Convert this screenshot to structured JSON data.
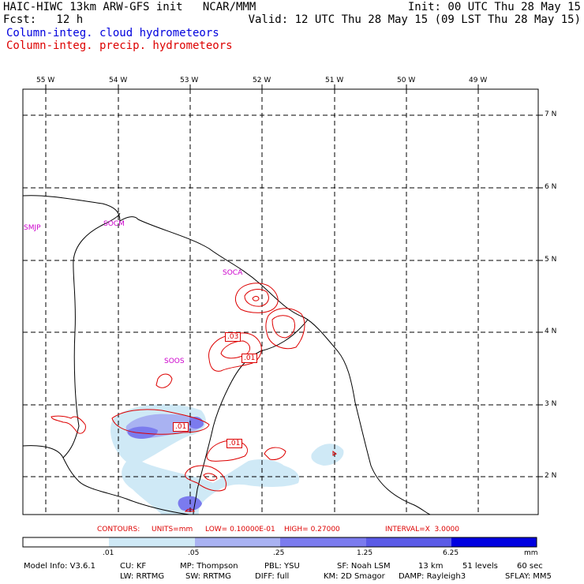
{
  "header": {
    "left_line1": "HAIC-HIWC 13km ARW-GFS init   NCAR/MMM",
    "left_line2": "Fcst:   12 h",
    "right_line1": "Init: 00 UTC Thu 28 May 15",
    "right_line2": "Valid: 12 UTC Thu 28 May 15 (09 LST Thu 28 May 15)",
    "field_cloud": "Column-integ. cloud hydrometeors",
    "field_precip": "Column-integ. precip. hydrometeors"
  },
  "map": {
    "lon_labels": [
      "55 W",
      "54 W",
      "53 W",
      "52 W",
      "51 W",
      "50 W",
      "49 W"
    ],
    "lat_labels": [
      "7 N",
      "6 N",
      "5 N",
      "4 N",
      "3 N",
      "2 N"
    ],
    "stations": [
      "SMJP",
      "SOCM",
      "SOCA",
      "SOOS"
    ],
    "contour_labels": [
      ".03",
      ".01",
      ".01",
      ".01"
    ]
  },
  "colors": {
    "cloud_text": "#0000dd",
    "precip_contour": "#dd0000",
    "station": "#cc00cc",
    "shade_1": "#cfe9f6",
    "shade_2": "#a9b2f2",
    "shade_3": "#7b7bee",
    "shade_4": "#5a5ae6",
    "shade_5": "#3a3ad8",
    "shade_6": "#0000e0"
  },
  "contour_info": {
    "contours": "CONTOURS:",
    "units": "UNITS=mm",
    "low": "LOW= 0.10000E-01",
    "high": "HIGH= 0.27000",
    "interval": "INTERVAL=X  3.0000"
  },
  "colorbar": {
    "ticks": [
      ".01",
      ".05",
      ".25",
      "1.25",
      "6.25"
    ],
    "unit": "mm"
  },
  "model_info": {
    "line1": [
      "Model Info: V3.6.1",
      "CU: KF",
      "MP: Thompson",
      "PBL: YSU",
      "SF: Noah LSM",
      "13 km",
      "51 levels",
      "60 sec"
    ],
    "line2": [
      "LW: RRTMG",
      "SW: RRTMG",
      "DIFF: full",
      "KM: 2D Smagor",
      "DAMP: Rayleigh3",
      "SFLAY: MM5"
    ]
  }
}
